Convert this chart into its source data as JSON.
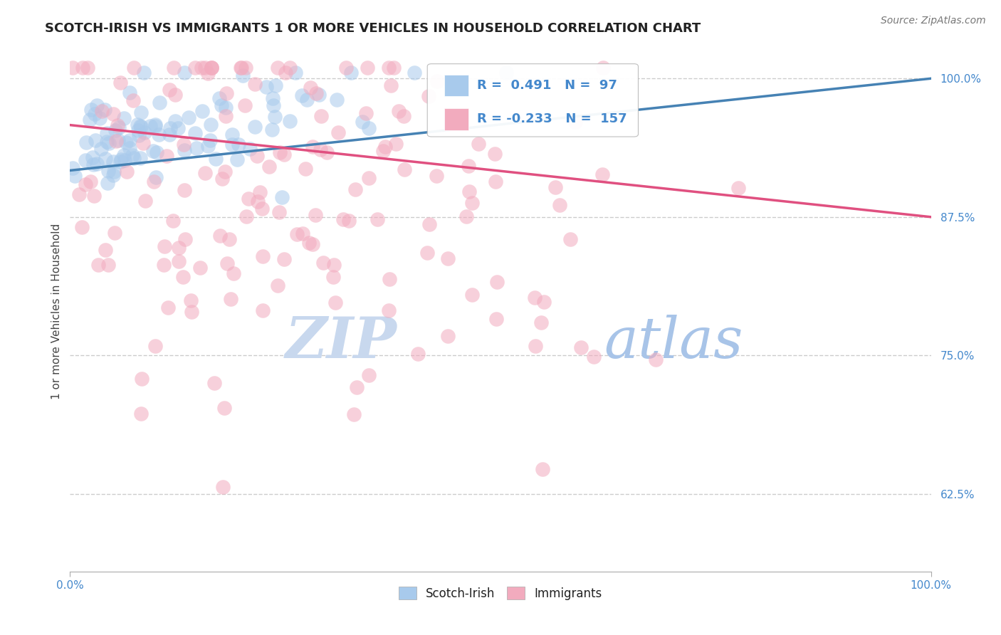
{
  "title": "SCOTCH-IRISH VS IMMIGRANTS 1 OR MORE VEHICLES IN HOUSEHOLD CORRELATION CHART",
  "source_text": "Source: ZipAtlas.com",
  "ylabel": "1 or more Vehicles in Household",
  "xlim": [
    0.0,
    1.0
  ],
  "ylim": [
    0.555,
    1.025
  ],
  "yticks": [
    0.625,
    0.75,
    0.875,
    1.0
  ],
  "ytick_labels": [
    "62.5%",
    "75.0%",
    "87.5%",
    "100.0%"
  ],
  "scotch_irish_R": 0.491,
  "scotch_irish_N": 97,
  "immigrants_R": -0.233,
  "immigrants_N": 157,
  "scotch_irish_color": "#A8CAEC",
  "immigrants_color": "#F2ABBE",
  "scotch_irish_line_color": "#4682B4",
  "immigrants_line_color": "#E05080",
  "watermark_color_zip": "#C8D8EC",
  "watermark_color_atlas": "#A8C4E8",
  "background_color": "#FFFFFF",
  "grid_color": "#CCCCCC",
  "title_fontsize": 13,
  "axis_label_fontsize": 11,
  "tick_fontsize": 11,
  "legend_fontsize": 13,
  "source_fontsize": 10,
  "tick_label_color": "#4488CC"
}
